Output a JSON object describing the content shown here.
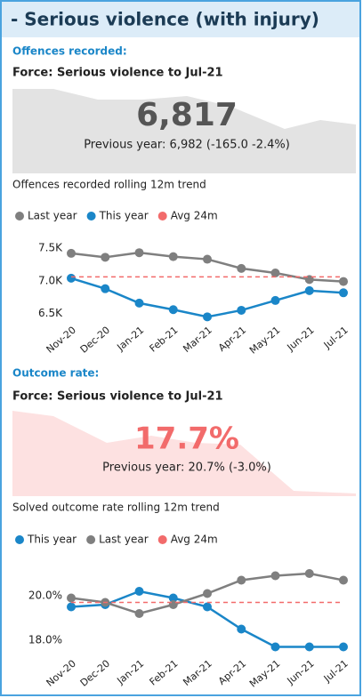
{
  "title": "- Serious violence (with injury)",
  "sections": [
    {
      "heading": "Offences recorded:",
      "subtitle": "Force: Serious violence to Jul-21",
      "kpi": "6,817",
      "kpi_note": "Previous year: 6,982 (-165.0 -2.4%)",
      "trend_label": "Offences recorded rolling 12m trend"
    },
    {
      "heading": "Outcome rate:",
      "subtitle": "Force: Serious violence to Jul-21",
      "kpi": "17.7%",
      "kpi_note": "Previous year: 20.7% (-3.0%)",
      "trend_label": "Solved outcome rate rolling 12m trend"
    }
  ],
  "chart_data": [
    {
      "type": "line",
      "categories": [
        "Nov-20",
        "Dec-20",
        "Jan-21",
        "Feb-21",
        "Mar-21",
        "Apr-21",
        "May-21",
        "Jun-21",
        "Jul-21"
      ],
      "series": [
        {
          "name": "Last year",
          "color": "#7f7f7f",
          "values": [
            7420,
            7360,
            7430,
            7370,
            7330,
            7190,
            7120,
            7020,
            6990
          ]
        },
        {
          "name": "This year",
          "color": "#1a86c8",
          "values": [
            7040,
            6880,
            6660,
            6560,
            6450,
            6550,
            6700,
            6850,
            6817
          ]
        },
        {
          "name": "Avg 24m",
          "color": "#f26b6b",
          "dashed": true,
          "values": [
            7060,
            7060,
            7060,
            7060,
            7060,
            7060,
            7060,
            7060,
            7060
          ]
        }
      ],
      "ylim": [
        6400,
        7650
      ],
      "yticks": [
        {
          "value": 6500,
          "label": "6.5K"
        },
        {
          "value": 7000,
          "label": "7.0K"
        },
        {
          "value": 7500,
          "label": "7.5K"
        }
      ]
    },
    {
      "type": "line",
      "categories": [
        "Nov-20",
        "Dec-20",
        "Jan-21",
        "Feb-21",
        "Mar-21",
        "Apr-21",
        "May-21",
        "Jun-21",
        "Jul-21"
      ],
      "series": [
        {
          "name": "This year",
          "color": "#1a86c8",
          "values": [
            19.5,
            19.6,
            20.2,
            19.9,
            19.5,
            18.5,
            17.7,
            17.7,
            17.7
          ]
        },
        {
          "name": "Last year",
          "color": "#7f7f7f",
          "values": [
            19.9,
            19.7,
            19.2,
            19.6,
            20.1,
            20.7,
            20.9,
            21.0,
            20.7
          ]
        },
        {
          "name": "Avg 24m",
          "color": "#f26b6b",
          "dashed": true,
          "values": [
            19.7,
            19.7,
            19.7,
            19.7,
            19.7,
            19.7,
            19.7,
            19.7,
            19.7
          ]
        }
      ],
      "ylim": [
        17.4,
        21.6
      ],
      "yticks": [
        {
          "value": 18,
          "label": "18.0%"
        },
        {
          "value": 20,
          "label": "20.0%"
        }
      ]
    }
  ]
}
